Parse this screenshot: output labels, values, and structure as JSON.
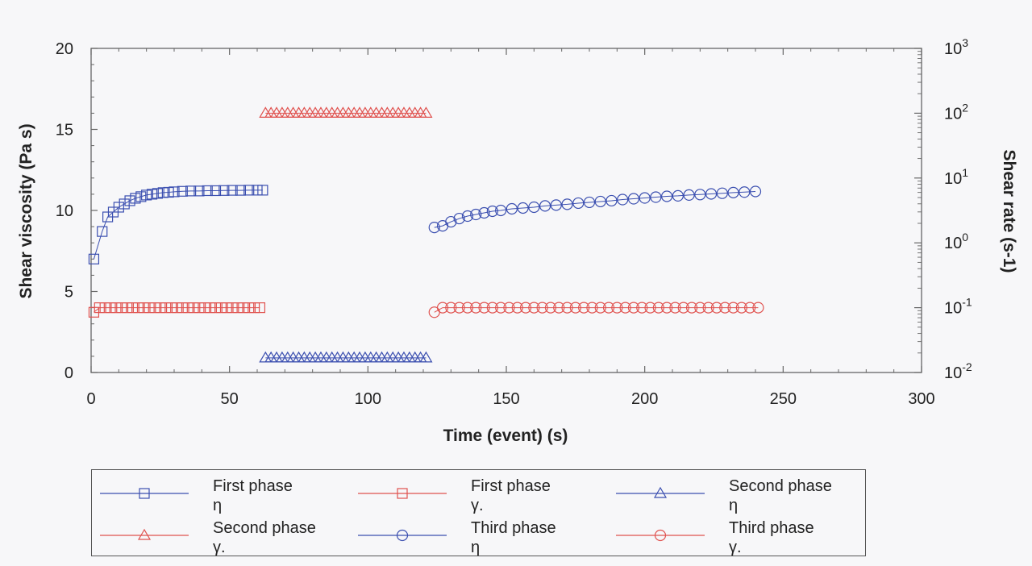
{
  "chart_data": {
    "type": "scatter",
    "xlabel": "Time (event) (s)",
    "ylabel_left": "Shear viscosity (Pa s)",
    "ylabel_right": "Shear rate (s-1)",
    "xlim": [
      0,
      300
    ],
    "ylim_left": [
      0,
      20
    ],
    "ylim_right": [
      0.01,
      1000
    ],
    "right_scale": "log",
    "x_ticks": [
      0,
      50,
      100,
      150,
      200,
      250,
      300
    ],
    "y_left_ticks": [
      0,
      5,
      10,
      15,
      20
    ],
    "y_right_ticks": [
      {
        "base": "10",
        "exp": "-2"
      },
      {
        "base": "10",
        "exp": "-1"
      },
      {
        "base": "10",
        "exp": "0"
      },
      {
        "base": "10",
        "exp": "1"
      },
      {
        "base": "10",
        "exp": "2"
      },
      {
        "base": "10",
        "exp": "3"
      }
    ],
    "legend_position": "bottom",
    "series": [
      {
        "name": "First phase η",
        "axis": "left",
        "marker": "square",
        "color": "#3b4fb0",
        "x": [
          1,
          4,
          6,
          8,
          10,
          12,
          14,
          16,
          18,
          20,
          22,
          24,
          26,
          28,
          30,
          33,
          36,
          39,
          42,
          45,
          48,
          51,
          54,
          57,
          60,
          62
        ],
        "y": [
          7.0,
          8.7,
          9.6,
          9.9,
          10.2,
          10.4,
          10.6,
          10.75,
          10.85,
          10.95,
          11.0,
          11.05,
          11.1,
          11.12,
          11.15,
          11.18,
          11.2,
          11.2,
          11.22,
          11.22,
          11.23,
          11.24,
          11.24,
          11.25,
          11.25,
          11.25
        ]
      },
      {
        "name": "First phase γ.",
        "axis": "right",
        "marker": "square",
        "color": "#e0524f",
        "x": [
          1,
          3,
          5,
          7,
          9,
          11,
          13,
          15,
          17,
          19,
          21,
          23,
          25,
          27,
          29,
          31,
          33,
          35,
          37,
          39,
          41,
          43,
          45,
          47,
          49,
          51,
          53,
          55,
          57,
          59,
          61
        ],
        "y": [
          0.085,
          0.1,
          0.1,
          0.1,
          0.1,
          0.1,
          0.1,
          0.1,
          0.1,
          0.1,
          0.1,
          0.1,
          0.1,
          0.1,
          0.1,
          0.1,
          0.1,
          0.1,
          0.1,
          0.1,
          0.1,
          0.1,
          0.1,
          0.1,
          0.1,
          0.1,
          0.1,
          0.1,
          0.1,
          0.1,
          0.1
        ]
      },
      {
        "name": "Second phase η",
        "axis": "left",
        "marker": "triangle",
        "color": "#3b4fb0",
        "x": [
          63,
          65,
          67,
          69,
          71,
          73,
          75,
          77,
          79,
          81,
          83,
          85,
          87,
          89,
          91,
          93,
          95,
          97,
          99,
          101,
          103,
          105,
          107,
          109,
          111,
          113,
          115,
          117,
          119,
          121
        ],
        "y": [
          0.9,
          0.9,
          0.9,
          0.9,
          0.9,
          0.9,
          0.9,
          0.9,
          0.9,
          0.9,
          0.9,
          0.9,
          0.9,
          0.9,
          0.9,
          0.9,
          0.9,
          0.9,
          0.9,
          0.9,
          0.9,
          0.9,
          0.9,
          0.9,
          0.9,
          0.9,
          0.9,
          0.9,
          0.9,
          0.9
        ]
      },
      {
        "name": "Second phase γ.",
        "axis": "right",
        "marker": "triangle",
        "color": "#e0524f",
        "x": [
          63,
          65,
          67,
          69,
          71,
          73,
          75,
          77,
          79,
          81,
          83,
          85,
          87,
          89,
          91,
          93,
          95,
          97,
          99,
          101,
          103,
          105,
          107,
          109,
          111,
          113,
          115,
          117,
          119,
          121
        ],
        "y": [
          100,
          100,
          100,
          100,
          100,
          100,
          100,
          100,
          100,
          100,
          100,
          100,
          100,
          100,
          100,
          100,
          100,
          100,
          100,
          100,
          100,
          100,
          100,
          100,
          100,
          100,
          100,
          100,
          100,
          100
        ]
      },
      {
        "name": "Third phase η",
        "axis": "left",
        "marker": "circle",
        "color": "#3b4fb0",
        "x": [
          124,
          127,
          130,
          133,
          136,
          139,
          142,
          145,
          148,
          152,
          156,
          160,
          164,
          168,
          172,
          176,
          180,
          184,
          188,
          192,
          196,
          200,
          204,
          208,
          212,
          216,
          220,
          224,
          228,
          232,
          236,
          240
        ],
        "y": [
          8.95,
          9.05,
          9.3,
          9.5,
          9.65,
          9.75,
          9.85,
          9.95,
          10.0,
          10.1,
          10.15,
          10.2,
          10.28,
          10.33,
          10.38,
          10.45,
          10.5,
          10.55,
          10.6,
          10.67,
          10.72,
          10.77,
          10.82,
          10.87,
          10.9,
          10.95,
          10.98,
          11.02,
          11.06,
          11.1,
          11.13,
          11.17
        ]
      },
      {
        "name": "Third phase γ.",
        "axis": "right",
        "marker": "circle",
        "color": "#e0524f",
        "x": [
          124,
          127,
          130,
          133,
          136,
          139,
          142,
          145,
          148,
          151,
          154,
          157,
          160,
          163,
          166,
          169,
          172,
          175,
          178,
          181,
          184,
          187,
          190,
          193,
          196,
          199,
          202,
          205,
          208,
          211,
          214,
          217,
          220,
          223,
          226,
          229,
          232,
          235,
          238,
          241
        ],
        "y": [
          0.085,
          0.1,
          0.1,
          0.1,
          0.1,
          0.1,
          0.1,
          0.1,
          0.1,
          0.1,
          0.1,
          0.1,
          0.1,
          0.1,
          0.1,
          0.1,
          0.1,
          0.1,
          0.1,
          0.1,
          0.1,
          0.1,
          0.1,
          0.1,
          0.1,
          0.1,
          0.1,
          0.1,
          0.1,
          0.1,
          0.1,
          0.1,
          0.1,
          0.1,
          0.1,
          0.1,
          0.1,
          0.1,
          0.1,
          0.1
        ]
      }
    ]
  },
  "legend": [
    {
      "line1": "First phase",
      "line2": "η",
      "marker": "square",
      "color": "#3b4fb0"
    },
    {
      "line1": "First phase",
      "line2": "γ.",
      "marker": "square",
      "color": "#e0524f"
    },
    {
      "line1": "Second phase",
      "line2": "η",
      "marker": "triangle",
      "color": "#3b4fb0"
    },
    {
      "line1": "Second phase",
      "line2": "γ.",
      "marker": "triangle",
      "color": "#e0524f"
    },
    {
      "line1": "Third phase",
      "line2": "η",
      "marker": "circle",
      "color": "#3b4fb0"
    },
    {
      "line1": "Third phase",
      "line2": "γ.",
      "marker": "circle",
      "color": "#e0524f"
    }
  ]
}
